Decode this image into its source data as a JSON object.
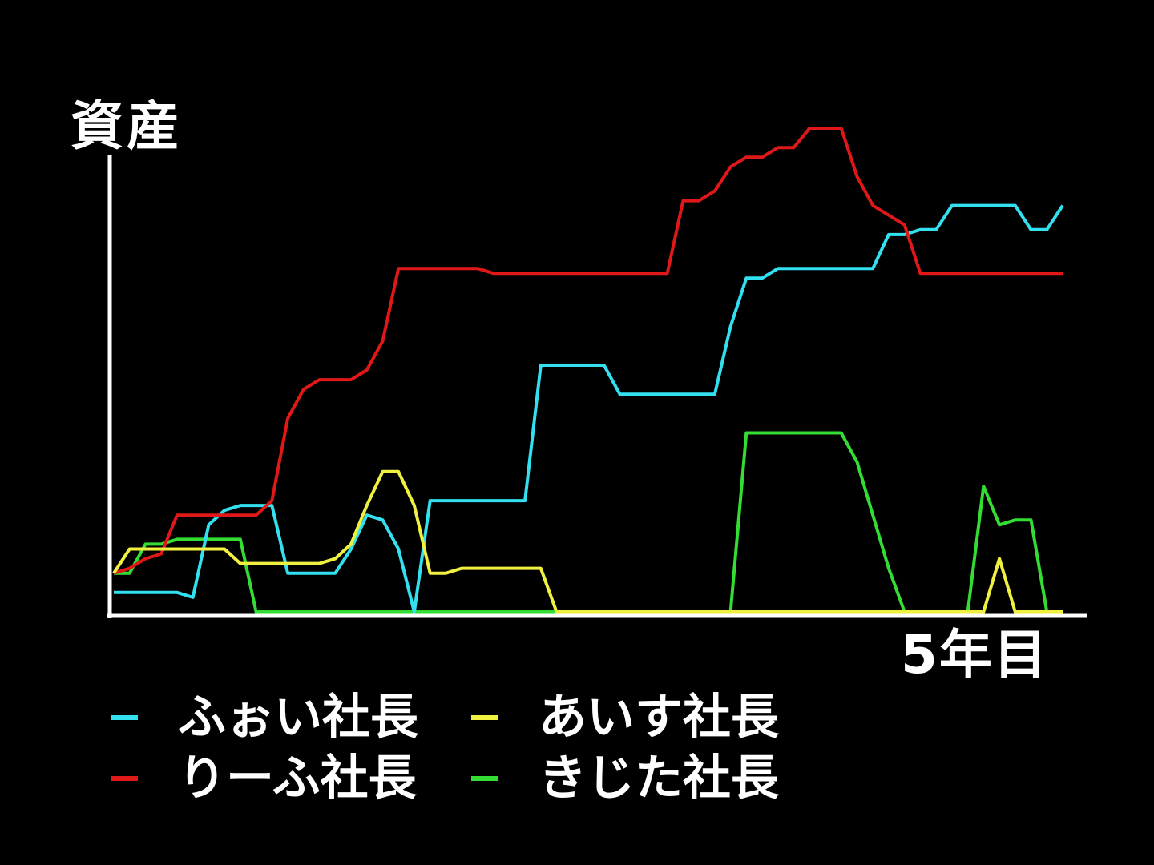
{
  "chart_data": {
    "type": "line",
    "title": "",
    "ylabel": "資産",
    "xlabel": "5年目",
    "ylim": [
      0,
      100
    ],
    "x": [
      0,
      1,
      2,
      3,
      4,
      5,
      6,
      7,
      8,
      9,
      10,
      11,
      12,
      13,
      14,
      15,
      16,
      17,
      18,
      19,
      20,
      21,
      22,
      23,
      24,
      25,
      26,
      27,
      28,
      29,
      30,
      31,
      32,
      33,
      34,
      35,
      36,
      37,
      38,
      39,
      40,
      41,
      42,
      43,
      44,
      45,
      46,
      47,
      48,
      49,
      50,
      51,
      52,
      53,
      54,
      55,
      56,
      57,
      58,
      59,
      60
    ],
    "xlim": [
      0,
      60
    ],
    "grid": false,
    "legend_position": "bottom-left",
    "series": [
      {
        "name": "ふぉい社長",
        "color": "#33e0f0",
        "values": [
          4,
          4,
          4,
          4,
          4,
          3,
          18,
          21,
          22,
          22,
          22,
          8,
          8,
          8,
          8,
          13,
          20,
          19,
          13,
          0,
          23,
          23,
          23,
          23,
          23,
          23,
          23,
          51,
          51,
          51,
          51,
          51,
          45,
          45,
          45,
          45,
          45,
          45,
          45,
          59,
          69,
          69,
          71,
          71,
          71,
          71,
          71,
          71,
          71,
          78,
          78,
          79,
          79,
          84,
          84,
          84,
          84,
          84,
          79,
          79,
          84
        ]
      },
      {
        "name": "あいす社長",
        "color": "#f0f040",
        "values": [
          8,
          13,
          13,
          13,
          13,
          13,
          13,
          13,
          10,
          10,
          10,
          10,
          10,
          10,
          11,
          14,
          22,
          29,
          29,
          22,
          8,
          8,
          9,
          9,
          9,
          9,
          9,
          9,
          0,
          0,
          0,
          0,
          0,
          0,
          0,
          0,
          0,
          0,
          0,
          0,
          0,
          0,
          0,
          0,
          0,
          0,
          0,
          0,
          0,
          0,
          0,
          0,
          0,
          0,
          0,
          0,
          11,
          0,
          0,
          0,
          0
        ]
      },
      {
        "name": "りーふ社長",
        "color": "#e01818",
        "values": [
          8,
          9,
          11,
          12,
          20,
          20,
          20,
          20,
          20,
          20,
          23,
          40,
          46,
          48,
          48,
          48,
          50,
          56,
          71,
          71,
          71,
          71,
          71,
          71,
          70,
          70,
          70,
          70,
          70,
          70,
          70,
          70,
          70,
          70,
          70,
          70,
          85,
          85,
          87,
          92,
          94,
          94,
          96,
          96,
          100,
          100,
          100,
          90,
          84,
          82,
          80,
          70,
          70,
          70,
          70,
          70,
          70,
          70,
          70,
          70,
          70
        ]
      },
      {
        "name": "きじた社長",
        "color": "#33dd33",
        "values": [
          8,
          8,
          14,
          14,
          15,
          15,
          15,
          15,
          15,
          0,
          0,
          0,
          0,
          0,
          0,
          0,
          0,
          0,
          0,
          0,
          0,
          0,
          0,
          0,
          0,
          0,
          0,
          0,
          0,
          0,
          0,
          0,
          0,
          0,
          0,
          0,
          0,
          0,
          0,
          0,
          37,
          37,
          37,
          37,
          37,
          37,
          37,
          31,
          20,
          9,
          0,
          0,
          0,
          0,
          0,
          26,
          18,
          19,
          19,
          0,
          0
        ]
      }
    ]
  }
}
